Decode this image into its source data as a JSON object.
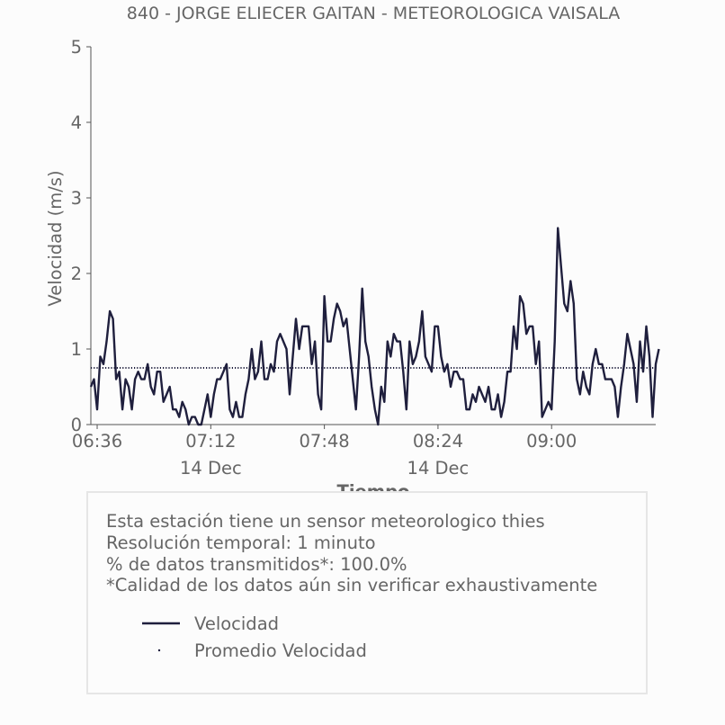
{
  "chart_data": {
    "type": "line",
    "title": "840 - JORGE ELIECER GAITAN - METEOROLOGICA VAISALA",
    "xlabel": "Tiempo",
    "ylabel": "Velocidad (m/s)",
    "ylim": [
      0,
      5
    ],
    "yticks": [
      "0",
      "1",
      "2",
      "3",
      "4",
      "5"
    ],
    "xlim_minutes": [
      394,
      573
    ],
    "xticks": [
      {
        "minute": 396,
        "label": "06:36"
      },
      {
        "minute": 432,
        "label": "07:12"
      },
      {
        "minute": 468,
        "label": "07:48"
      },
      {
        "minute": 504,
        "label": "08:24"
      },
      {
        "minute": 540,
        "label": "09:00"
      }
    ],
    "xdate_labels": [
      {
        "minute": 432,
        "label": "14 Dec"
      },
      {
        "minute": 504,
        "label": "14 Dec"
      }
    ],
    "x_start_minute": 394,
    "x_step_minutes": 1,
    "series": [
      {
        "name": "Velocidad",
        "color": "#1f1f3d",
        "values": [
          0.5,
          0.6,
          0.2,
          0.9,
          0.8,
          1.1,
          1.5,
          1.4,
          0.6,
          0.7,
          0.2,
          0.6,
          0.5,
          0.2,
          0.6,
          0.7,
          0.6,
          0.6,
          0.8,
          0.5,
          0.4,
          0.7,
          0.7,
          0.3,
          0.4,
          0.5,
          0.2,
          0.2,
          0.1,
          0.3,
          0.2,
          0.0,
          0.1,
          0.1,
          0.0,
          0.0,
          0.2,
          0.4,
          0.1,
          0.4,
          0.6,
          0.6,
          0.7,
          0.8,
          0.2,
          0.1,
          0.3,
          0.1,
          0.1,
          0.4,
          0.6,
          1.0,
          0.6,
          0.7,
          1.1,
          0.6,
          0.6,
          0.8,
          0.7,
          1.1,
          1.2,
          1.1,
          1.0,
          0.4,
          0.9,
          1.4,
          1.0,
          1.3,
          1.3,
          1.3,
          0.8,
          1.1,
          0.4,
          0.2,
          1.7,
          1.1,
          1.1,
          1.4,
          1.6,
          1.5,
          1.3,
          1.4,
          1.0,
          0.6,
          0.2,
          0.9,
          1.8,
          1.1,
          0.9,
          0.5,
          0.2,
          0.0,
          0.5,
          0.3,
          1.1,
          0.9,
          1.2,
          1.1,
          1.1,
          0.7,
          0.2,
          1.1,
          0.8,
          0.9,
          1.1,
          1.5,
          0.9,
          0.8,
          0.7,
          1.3,
          1.3,
          0.9,
          0.7,
          0.8,
          0.5,
          0.7,
          0.7,
          0.6,
          0.6,
          0.2,
          0.2,
          0.4,
          0.3,
          0.5,
          0.4,
          0.3,
          0.5,
          0.2,
          0.2,
          0.4,
          0.1,
          0.3,
          0.7,
          0.7,
          1.3,
          1.0,
          1.7,
          1.6,
          1.2,
          1.3,
          1.3,
          0.8,
          1.1,
          0.1,
          0.2,
          0.3,
          0.2,
          1.1,
          2.6,
          2.1,
          1.6,
          1.5,
          1.9,
          1.6,
          0.6,
          0.4,
          0.7,
          0.5,
          0.4,
          0.8,
          1.0,
          0.8,
          0.8,
          0.6,
          0.6,
          0.6,
          0.5,
          0.1,
          0.5,
          0.8,
          1.2,
          1.0,
          0.8,
          0.3,
          1.1,
          0.7,
          1.3,
          0.9,
          0.1,
          0.8,
          1.0
        ]
      },
      {
        "name": "Promedio Velocidad",
        "color": "#1f1f3d",
        "constant": 0.75
      }
    ]
  },
  "info": {
    "lines": [
      "Esta estación tiene un sensor meteorologico thies",
      "Resolución temporal: 1 minuto",
      "% de datos transmitidos*: 100.0%",
      "*Calidad de los datos aún sin verificar exhaustivamente"
    ]
  },
  "legend": {
    "items": [
      {
        "label": "Velocidad",
        "style": "line"
      },
      {
        "label": "Promedio Velocidad",
        "style": "dot"
      }
    ]
  }
}
